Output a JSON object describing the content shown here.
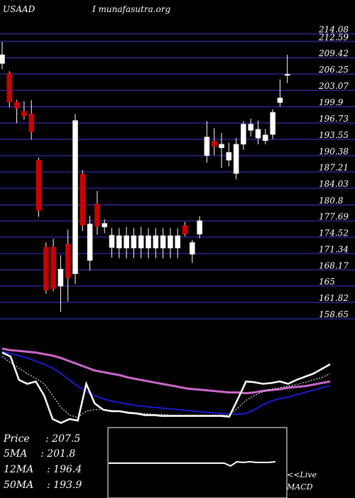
{
  "header": {
    "symbol": "USAAD",
    "site": "I munafasutra.org"
  },
  "colors": {
    "background": "#000000",
    "grid": "#1f1f6e",
    "up_candle": "#ffffff",
    "down_candle": "#cc0000",
    "label_text": "#ffffff",
    "ma_slow": "#cc66cc",
    "ma_mid": "#1a1acc",
    "price_line": "#ffffff",
    "ma_fast": "#ffffff"
  },
  "chart_data": [
    {
      "type": "candlestick",
      "price_levels": [
        214.08,
        212.59,
        209.42,
        206.25,
        203.07,
        199.9,
        196.73,
        193.55,
        190.38,
        187.21,
        184.03,
        180.8,
        177.69,
        174.52,
        171.34,
        168.17,
        165,
        161.82,
        158.65
      ],
      "price_labels": [
        "214.08",
        "212.59",
        "209.42",
        "206.25",
        "203.07",
        "199.9",
        "196.73",
        "193.55",
        "190.38",
        "187.21",
        "184.03",
        "180.8",
        "177.69",
        "174.52",
        "171.34",
        "168.17",
        "165",
        "161.82",
        "158.65"
      ],
      "ylim": [
        157.0,
        216.5
      ],
      "candles": [
        {
          "o": 208.3,
          "h": 212.5,
          "l": 207.2,
          "c": 210.0
        },
        {
          "o": 206.4,
          "h": 206.8,
          "l": 199.8,
          "c": 200.8
        },
        {
          "o": 200.8,
          "h": 201.2,
          "l": 196.7,
          "c": 199.6
        },
        {
          "o": 199.0,
          "h": 201.0,
          "l": 197.4,
          "c": 198.1
        },
        {
          "o": 198.5,
          "h": 201.2,
          "l": 193.5,
          "c": 195.0
        },
        {
          "o": 189.5,
          "h": 190.0,
          "l": 178.5,
          "c": 179.7
        },
        {
          "o": 172.6,
          "h": 173.5,
          "l": 163.5,
          "c": 164.2
        },
        {
          "o": 172.6,
          "h": 174.2,
          "l": 164.0,
          "c": 164.5
        },
        {
          "o": 165.0,
          "h": 171.0,
          "l": 160.0,
          "c": 168.3
        },
        {
          "o": 173.2,
          "h": 176.0,
          "l": 162.0,
          "c": 166.6
        },
        {
          "o": 167.4,
          "h": 198.5,
          "l": 165.4,
          "c": 197.2
        },
        {
          "o": 186.8,
          "h": 187.6,
          "l": 175.7,
          "c": 176.8
        },
        {
          "o": 170.0,
          "h": 178.7,
          "l": 168.0,
          "c": 177.1
        },
        {
          "o": 181.0,
          "h": 183.5,
          "l": 175.0,
          "c": 176.6
        },
        {
          "o": 176.5,
          "h": 178.0,
          "l": 175.3,
          "c": 177.2
        },
        {
          "o": 172.5,
          "h": 176.3,
          "l": 170.5,
          "c": 174.9
        },
        {
          "o": 172.4,
          "h": 176.3,
          "l": 170.4,
          "c": 174.8
        },
        {
          "o": 172.4,
          "h": 176.5,
          "l": 170.4,
          "c": 174.8
        },
        {
          "o": 172.4,
          "h": 176.3,
          "l": 170.4,
          "c": 174.8
        },
        {
          "o": 172.4,
          "h": 176.5,
          "l": 170.4,
          "c": 174.8
        },
        {
          "o": 172.4,
          "h": 176.3,
          "l": 170.4,
          "c": 174.8
        },
        {
          "o": 172.4,
          "h": 176.3,
          "l": 170.4,
          "c": 174.8
        },
        {
          "o": 172.4,
          "h": 176.3,
          "l": 170.4,
          "c": 174.8
        },
        {
          "o": 172.4,
          "h": 176.3,
          "l": 170.4,
          "c": 174.8
        },
        {
          "o": 172.4,
          "h": 176.3,
          "l": 170.4,
          "c": 174.8
        },
        {
          "o": 176.8,
          "h": 177.5,
          "l": 174.7,
          "c": 175.1
        },
        {
          "o": 171.2,
          "h": 174.0,
          "l": 169.5,
          "c": 173.5
        },
        {
          "o": 175.1,
          "h": 178.6,
          "l": 174.3,
          "c": 177.7
        },
        {
          "o": 190.4,
          "h": 197.1,
          "l": 189.0,
          "c": 194.0
        },
        {
          "o": 193.2,
          "h": 195.7,
          "l": 190.5,
          "c": 192.2
        },
        {
          "o": 191.9,
          "h": 194.8,
          "l": 188.0,
          "c": 192.6
        },
        {
          "o": 189.5,
          "h": 192.9,
          "l": 188.3,
          "c": 191.0
        },
        {
          "o": 186.9,
          "h": 193.8,
          "l": 185.8,
          "c": 192.6
        },
        {
          "o": 192.6,
          "h": 197.1,
          "l": 191.5,
          "c": 196.5
        },
        {
          "o": 195.3,
          "h": 197.6,
          "l": 194.1,
          "c": 196.5
        },
        {
          "o": 193.8,
          "h": 197.2,
          "l": 192.6,
          "c": 195.5
        },
        {
          "o": 193.3,
          "h": 195.6,
          "l": 192.6,
          "c": 194.4
        },
        {
          "o": 194.5,
          "h": 199.4,
          "l": 193.6,
          "c": 198.8
        },
        {
          "o": 200.7,
          "h": 205.2,
          "l": 199.9,
          "c": 201.6
        },
        {
          "o": 206.0,
          "h": 210.0,
          "l": 204.5,
          "c": 206.2
        }
      ],
      "grid": true
    },
    {
      "type": "line",
      "series": [
        {
          "key": "ma_slow",
          "values": [
            100,
            98,
            97,
            96,
            95,
            93,
            91,
            88,
            84,
            80,
            76,
            72,
            70,
            68,
            66,
            63,
            61,
            59,
            57,
            55,
            53,
            51,
            49,
            48,
            47,
            46,
            45,
            44,
            44,
            43,
            44,
            46,
            47,
            48,
            50,
            51,
            52,
            54,
            56,
            58
          ]
        },
        {
          "key": "ma_mid",
          "values": [
            96,
            94,
            91,
            88,
            84,
            80,
            75,
            68,
            60,
            52,
            45,
            40,
            36,
            33,
            31,
            29,
            27,
            26,
            25,
            24,
            23,
            22,
            21,
            20,
            19,
            18,
            17,
            17,
            16,
            17,
            22,
            28,
            33,
            36,
            38,
            41,
            44,
            47,
            50,
            53
          ]
        },
        {
          "key": "price_line",
          "values": [
            95,
            90,
            60,
            55,
            58,
            40,
            10,
            5,
            10,
            8,
            55,
            30,
            22,
            20,
            20,
            18,
            17,
            15,
            15,
            14,
            14,
            14,
            14,
            14,
            14,
            14,
            14,
            13,
            35,
            58,
            57,
            55,
            56,
            58,
            55,
            60,
            64,
            68,
            74,
            80
          ]
        },
        {
          "key": "ma_fast",
          "values": [
            90,
            82,
            75,
            68,
            62,
            55,
            40,
            25,
            15,
            12,
            20,
            22,
            22,
            21,
            20,
            19,
            18,
            17,
            16,
            16,
            15,
            15,
            15,
            15,
            15,
            15,
            15,
            15,
            24,
            34,
            40,
            45,
            48,
            50,
            52,
            54,
            57,
            60,
            63,
            68
          ]
        }
      ]
    },
    {
      "type": "line",
      "name": "MACD",
      "values": [
        0,
        0,
        0,
        0,
        0,
        0,
        0,
        0,
        0,
        0,
        0,
        0,
        0,
        0,
        0,
        0,
        0,
        0,
        0,
        -4,
        2,
        1,
        2,
        1,
        1,
        1,
        2
      ]
    }
  ],
  "stats": {
    "price_label": "Price",
    "price_value": ": 207.5",
    "ma5_label": "5MA",
    "ma5_value": ": 201.8",
    "ma12_label": "12MA",
    "ma12_value": ": 196.4",
    "ma50_label": "50MA",
    "ma50_value": ": 193.9"
  },
  "macd": {
    "live_label": "<<Live",
    "macd_label": "MACD"
  }
}
